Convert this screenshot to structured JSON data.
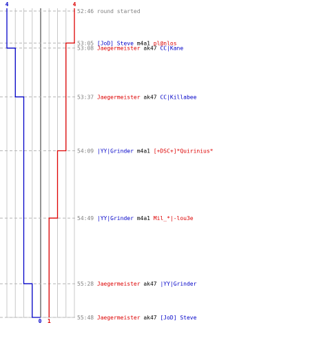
{
  "chart_data": {
    "type": "line",
    "title": "",
    "xlabel": "",
    "ylabel": "",
    "xlim": [
      -4,
      4
    ],
    "ylim_time": [
      "52:46",
      "55:48"
    ],
    "top_labels": {
      "left": "4",
      "right": "4"
    },
    "bottom_labels": {
      "left": "0",
      "right": "1"
    },
    "colors": {
      "blue": "#0000c8",
      "red": "#dd0000",
      "black": "#000000",
      "gray": "#808080",
      "grid": "#c8c8c8",
      "center": "#707070",
      "dash": "#b4b4b4"
    },
    "series": [
      {
        "color": "blue",
        "start": 4,
        "steps": [
          {
            "time": "53:08",
            "value": 3
          },
          {
            "time": "53:37",
            "value": 2
          },
          {
            "time": "55:28",
            "value": 1
          },
          {
            "time": "55:48",
            "value": 0
          }
        ]
      },
      {
        "color": "red",
        "start": 4,
        "steps": [
          {
            "time": "53:05",
            "value": 3
          },
          {
            "time": "54:09",
            "value": 2
          },
          {
            "time": "54:49",
            "value": 1
          }
        ]
      }
    ],
    "events": [
      {
        "time": "52:46",
        "parts": [
          {
            "text": "round started",
            "color": "gray"
          }
        ]
      },
      {
        "time": "53:05",
        "parts": [
          {
            "text": "[JoD] Steve",
            "color": "blue"
          },
          {
            "text": "m4a1",
            "color": "black"
          },
          {
            "text": "pl@nlos",
            "color": "red"
          }
        ]
      },
      {
        "time": "53:08",
        "parts": [
          {
            "text": "Jaegermeister",
            "color": "red"
          },
          {
            "text": "ak47",
            "color": "black"
          },
          {
            "text": "CC|Kane",
            "color": "blue"
          }
        ]
      },
      {
        "time": "53:37",
        "parts": [
          {
            "text": "Jaegermeister",
            "color": "red"
          },
          {
            "text": "ak47",
            "color": "black"
          },
          {
            "text": "CC|Killabee",
            "color": "blue"
          }
        ]
      },
      {
        "time": "54:09",
        "parts": [
          {
            "text": "|YY|Grinder",
            "color": "blue"
          },
          {
            "text": "m4a1",
            "color": "black"
          },
          {
            "text": "[+DSC+]*Quirinius*",
            "color": "red"
          }
        ]
      },
      {
        "time": "54:49",
        "parts": [
          {
            "text": "|YY|Grinder",
            "color": "blue"
          },
          {
            "text": "m4a1",
            "color": "black"
          },
          {
            "text": "Mil_*|-lou3e",
            "color": "red"
          }
        ]
      },
      {
        "time": "55:28",
        "parts": [
          {
            "text": "Jaegermeister",
            "color": "red"
          },
          {
            "text": "ak47",
            "color": "black"
          },
          {
            "text": "|YY|Grinder",
            "color": "blue"
          }
        ]
      },
      {
        "time": "55:48",
        "parts": [
          {
            "text": "Jaegermeister",
            "color": "red"
          },
          {
            "text": "ak47",
            "color": "black"
          },
          {
            "text": "[JoD] Steve",
            "color": "blue"
          }
        ]
      }
    ]
  }
}
